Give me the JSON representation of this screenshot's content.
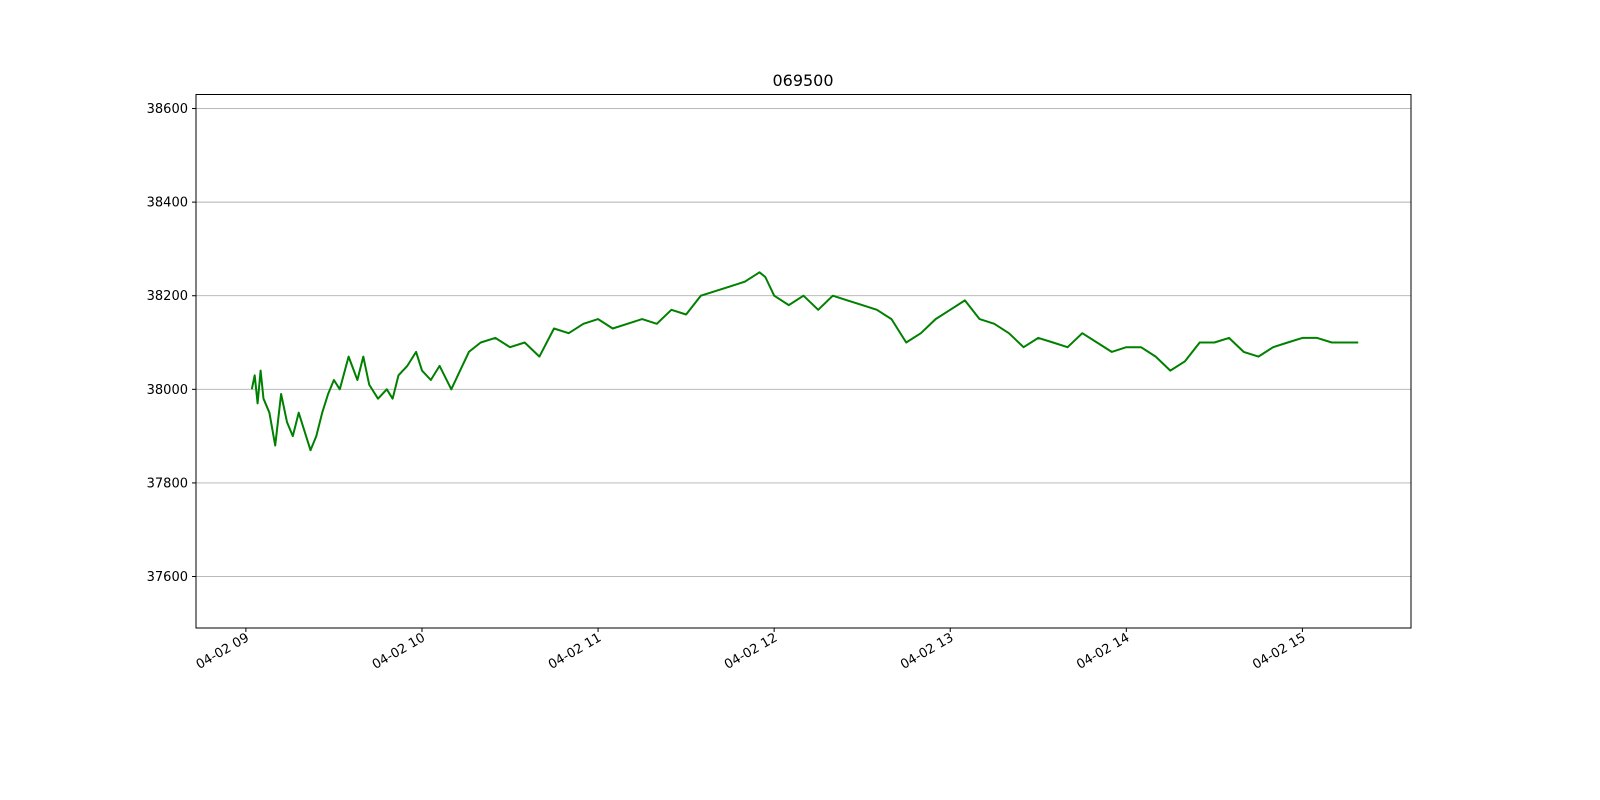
{
  "chart_data": {
    "type": "line",
    "title": "069500",
    "xlabel": "",
    "ylabel": "",
    "x_ticks": [
      "04-02 09",
      "04-02 10",
      "04-02 11",
      "04-02 12",
      "04-02 13",
      "04-02 14",
      "04-02 15"
    ],
    "y_ticks": [
      "37600",
      "37800",
      "38000",
      "38200",
      "38400",
      "38600"
    ],
    "xlim": [
      "04-02 08:43",
      "04-02 15:37"
    ],
    "ylim": [
      37490,
      38630
    ],
    "grid": "horizontal",
    "colors": {
      "line": "#008000",
      "grid": "#b0b0b0",
      "axes": "#000000"
    },
    "series": [
      {
        "x": [
          "09:02",
          "09:03",
          "09:04",
          "09:05",
          "09:06",
          "09:08",
          "09:10",
          "09:12",
          "09:14",
          "09:16",
          "09:18",
          "09:20",
          "09:22",
          "09:24",
          "09:26",
          "09:28",
          "09:30",
          "09:32",
          "09:35",
          "09:38",
          "09:40",
          "09:42",
          "09:45",
          "09:48",
          "09:50",
          "09:52",
          "09:55",
          "09:58",
          "10:00",
          "10:03",
          "10:06",
          "10:10",
          "10:13",
          "10:16",
          "10:20",
          "10:25",
          "10:30",
          "10:35",
          "10:40",
          "10:45",
          "10:50",
          "10:55",
          "11:00",
          "11:05",
          "11:10",
          "11:15",
          "11:20",
          "11:25",
          "11:30",
          "11:35",
          "11:40",
          "11:45",
          "11:50",
          "11:55",
          "11:57",
          "12:00",
          "12:05",
          "12:10",
          "12:15",
          "12:20",
          "12:25",
          "12:30",
          "12:35",
          "12:40",
          "12:45",
          "12:50",
          "12:55",
          "13:00",
          "13:05",
          "13:10",
          "13:15",
          "13:20",
          "13:25",
          "13:30",
          "13:35",
          "13:40",
          "13:45",
          "13:50",
          "13:55",
          "14:00",
          "14:05",
          "14:10",
          "14:15",
          "14:20",
          "14:25",
          "14:30",
          "14:35",
          "14:40",
          "14:45",
          "14:50",
          "14:55",
          "15:00",
          "15:05",
          "15:10",
          "15:15",
          "15:19"
        ],
        "y": [
          38000,
          38030,
          37970,
          38040,
          37980,
          37950,
          37880,
          37990,
          37930,
          37900,
          37950,
          37910,
          37870,
          37900,
          37950,
          37990,
          38020,
          38000,
          38070,
          38020,
          38070,
          38010,
          37980,
          38000,
          37980,
          38030,
          38050,
          38080,
          38040,
          38020,
          38050,
          38000,
          38040,
          38080,
          38100,
          38110,
          38090,
          38100,
          38070,
          38130,
          38120,
          38140,
          38150,
          38130,
          38140,
          38150,
          38140,
          38170,
          38160,
          38200,
          38210,
          38220,
          38230,
          38250,
          38240,
          38200,
          38180,
          38200,
          38170,
          38200,
          38190,
          38180,
          38170,
          38150,
          38100,
          38120,
          38150,
          38170,
          38190,
          38150,
          38140,
          38120,
          38090,
          38110,
          38100,
          38090,
          38120,
          38100,
          38080,
          38090,
          38090,
          38070,
          38040,
          38060,
          38100,
          38100,
          38110,
          38080,
          38070,
          38090,
          38100,
          38110,
          38110,
          38100,
          38100,
          38100
        ]
      }
    ]
  }
}
